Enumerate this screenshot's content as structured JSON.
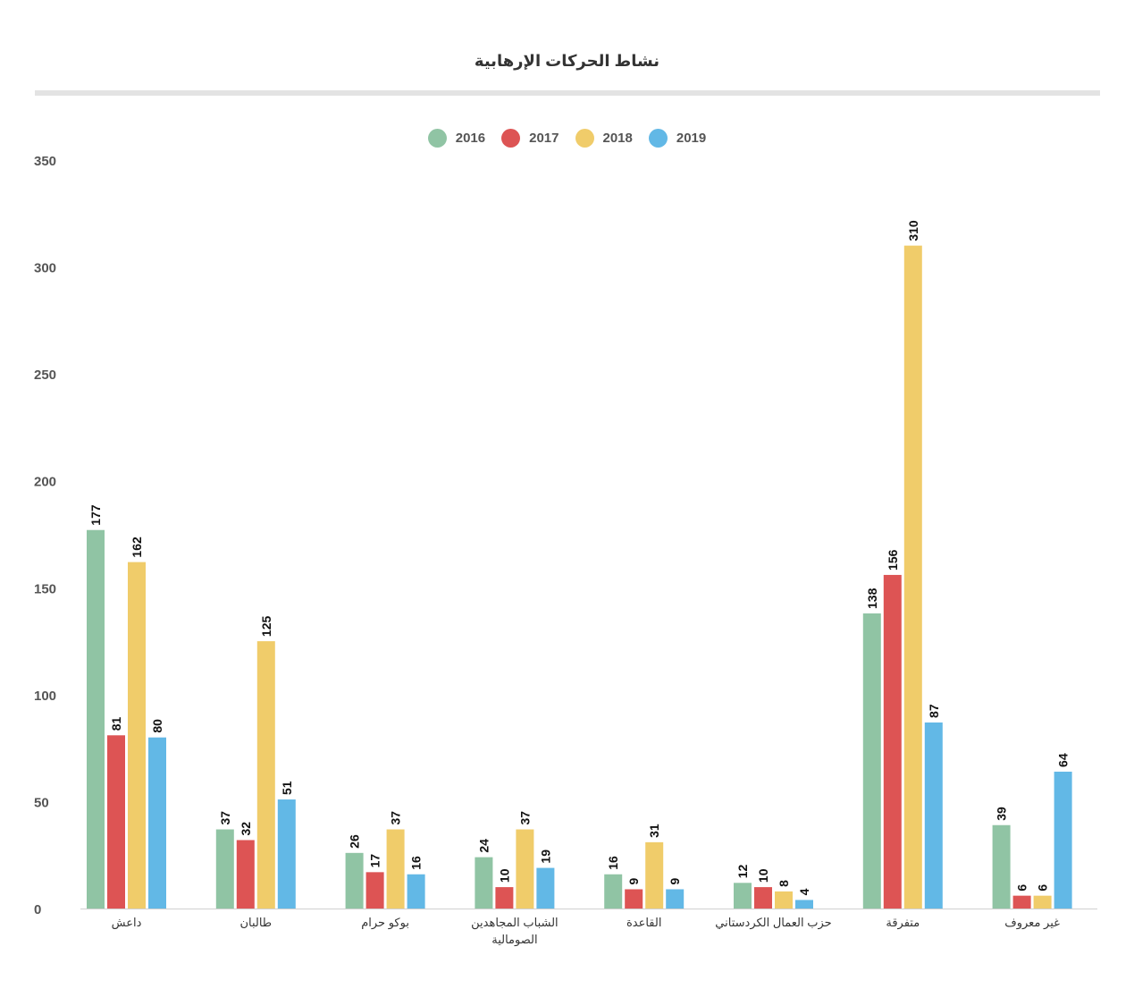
{
  "chart_data": {
    "type": "bar",
    "title": "نشاط الحركات الإرهابية",
    "categories": [
      "داعش",
      "طالبان",
      "بوكو حرام",
      "الشباب المجاهدين الصومالية",
      "القاعدة",
      "حزب العمال الكردستاني",
      "متفرقة",
      "غير معروف"
    ],
    "category_lines": [
      [
        "داعش"
      ],
      [
        "طالبان"
      ],
      [
        "بوكو حرام"
      ],
      [
        "الشباب المجاهدين",
        "الصومالية"
      ],
      [
        "القاعدة"
      ],
      [
        "حزب العمال الكردستاني"
      ],
      [
        "متفرقة"
      ],
      [
        "غير معروف"
      ]
    ],
    "series": [
      {
        "name": "2016",
        "color": "#90c4a4",
        "values": [
          177,
          37,
          26,
          24,
          16,
          12,
          138,
          39
        ]
      },
      {
        "name": "2017",
        "color": "#dd5454",
        "values": [
          81,
          32,
          17,
          10,
          9,
          10,
          156,
          6
        ]
      },
      {
        "name": "2018",
        "color": "#f0cc6a",
        "values": [
          162,
          125,
          37,
          37,
          31,
          8,
          310,
          6
        ]
      },
      {
        "name": "2019",
        "color": "#62b8e6",
        "values": [
          80,
          51,
          16,
          19,
          9,
          4,
          87,
          64
        ]
      }
    ],
    "ylim": [
      0,
      350
    ],
    "yticks": [
      0,
      50,
      100,
      150,
      200,
      250,
      300,
      350
    ],
    "legend": "top-center",
    "grid": false,
    "data_labels": true
  }
}
